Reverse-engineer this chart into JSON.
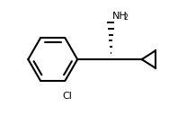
{
  "background_color": "#ffffff",
  "line_color": "#000000",
  "line_width": 1.5,
  "text_color": "#000000",
  "nh2_label": "NH",
  "nh2_sub": "2",
  "cl_label": "Cl",
  "figsize": [
    1.88,
    1.38
  ],
  "dpi": 100
}
